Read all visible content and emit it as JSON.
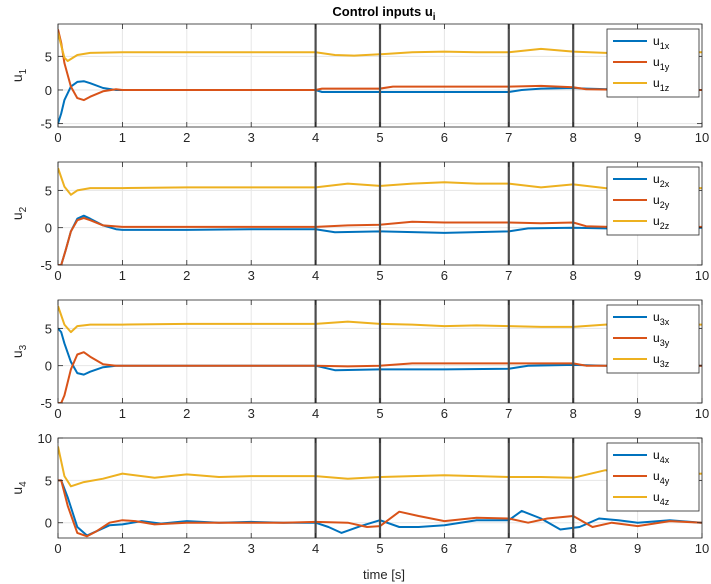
{
  "chart_data": [
    {
      "type": "line",
      "title": "Control inputs u",
      "title_sub": "i",
      "ylabel": "u",
      "ylabel_sub": "1",
      "xlabel": "",
      "xlim": [
        0,
        10
      ],
      "ylim": [
        -5.5,
        9.8
      ],
      "yticks": [
        -5,
        0,
        5
      ],
      "xticks": [
        0,
        1,
        2,
        3,
        4,
        5,
        6,
        7,
        8,
        9,
        10
      ],
      "grid": true,
      "legend_position": "top-right",
      "vlines": [
        4,
        5,
        7,
        8
      ],
      "series": [
        {
          "name": "u",
          "sub": "1x",
          "color": "#0072BD",
          "x": [
            0,
            0.05,
            0.1,
            0.2,
            0.3,
            0.4,
            0.5,
            0.7,
            0.9,
            1.0,
            2,
            3,
            4,
            4.1,
            4.5,
            5,
            5.2,
            6,
            6.5,
            7,
            7.2,
            7.5,
            8,
            8.2,
            9,
            10
          ],
          "y": [
            -5,
            -3.5,
            -1.5,
            0.5,
            1.2,
            1.3,
            1.0,
            0.3,
            0.0,
            0.0,
            0.0,
            0.0,
            0.0,
            -0.3,
            -0.3,
            -0.3,
            -0.3,
            -0.3,
            -0.3,
            -0.3,
            0.0,
            0.2,
            0.3,
            0.2,
            0.0,
            0.0
          ]
        },
        {
          "name": "u",
          "sub": "1y",
          "color": "#D95319",
          "x": [
            0,
            0.05,
            0.1,
            0.2,
            0.3,
            0.4,
            0.5,
            0.7,
            0.9,
            1.0,
            2,
            3,
            4,
            4.1,
            4.5,
            5,
            5.2,
            6,
            6.5,
            7,
            7.5,
            8,
            8.2,
            9,
            10
          ],
          "y": [
            9,
            7,
            4,
            0.5,
            -1.2,
            -1.5,
            -1.0,
            -0.2,
            0.1,
            0.0,
            0.0,
            0.0,
            0.0,
            0.2,
            0.2,
            0.2,
            0.5,
            0.5,
            0.5,
            0.5,
            0.6,
            0.4,
            0.1,
            0.0,
            0.0
          ]
        },
        {
          "name": "u",
          "sub": "1z",
          "color": "#EDB120",
          "x": [
            0,
            0.1,
            0.15,
            0.3,
            0.5,
            1,
            2,
            3,
            4,
            4.3,
            4.6,
            5,
            5.5,
            6,
            6.5,
            7,
            7.5,
            8,
            8.5,
            9,
            9.5,
            10
          ],
          "y": [
            8.5,
            4.8,
            4.3,
            5.2,
            5.5,
            5.6,
            5.6,
            5.6,
            5.6,
            5.2,
            5.1,
            5.3,
            5.6,
            5.7,
            5.6,
            5.6,
            6.1,
            5.7,
            5.5,
            5.5,
            5.6,
            5.6
          ]
        }
      ]
    },
    {
      "type": "line",
      "title": "",
      "ylabel": "u",
      "ylabel_sub": "2",
      "xlabel": "",
      "xlim": [
        0,
        10
      ],
      "ylim": [
        -5,
        8.8
      ],
      "yticks": [
        -5,
        0,
        5
      ],
      "xticks": [
        0,
        1,
        2,
        3,
        4,
        5,
        6,
        7,
        8,
        9,
        10
      ],
      "grid": true,
      "legend_position": "top-right",
      "vlines": [
        4,
        5,
        7,
        8
      ],
      "series": [
        {
          "name": "u",
          "sub": "2x",
          "color": "#0072BD",
          "x": [
            0,
            0.05,
            0.12,
            0.2,
            0.3,
            0.4,
            0.5,
            0.7,
            0.9,
            1.0,
            2,
            3,
            4,
            4.3,
            5,
            6,
            7,
            7.3,
            8,
            8.5,
            9,
            10
          ],
          "y": [
            -5,
            -5,
            -3,
            -0.5,
            1.2,
            1.6,
            1.2,
            0.3,
            -0.2,
            -0.3,
            -0.3,
            -0.2,
            -0.2,
            -0.6,
            -0.5,
            -0.7,
            -0.5,
            -0.1,
            0.0,
            -0.1,
            0.0,
            0.0
          ]
        },
        {
          "name": "u",
          "sub": "2y",
          "color": "#D95319",
          "x": [
            0,
            0.05,
            0.12,
            0.2,
            0.3,
            0.4,
            0.5,
            0.7,
            1.0,
            2,
            3,
            4,
            4.5,
            5,
            5.5,
            6,
            7,
            7.5,
            8,
            8.2,
            9,
            10
          ],
          "y": [
            -5,
            -5,
            -3,
            -0.5,
            1.0,
            1.3,
            1.0,
            0.3,
            0.1,
            0.1,
            0.1,
            0.1,
            0.3,
            0.4,
            0.8,
            0.7,
            0.7,
            0.6,
            0.7,
            0.2,
            0.0,
            0.1
          ]
        },
        {
          "name": "u",
          "sub": "2z",
          "color": "#EDB120",
          "x": [
            0,
            0.1,
            0.2,
            0.3,
            0.5,
            1,
            2,
            3,
            4,
            4.5,
            5,
            5.5,
            6,
            6.5,
            7,
            7.5,
            8,
            8.5,
            9,
            9.5,
            10
          ],
          "y": [
            8,
            5.5,
            4.4,
            5.0,
            5.3,
            5.3,
            5.4,
            5.4,
            5.4,
            5.9,
            5.6,
            5.9,
            6.1,
            5.9,
            5.9,
            5.4,
            5.8,
            5.3,
            5.2,
            5.3,
            5.3
          ]
        }
      ]
    },
    {
      "type": "line",
      "title": "",
      "ylabel": "u",
      "ylabel_sub": "3",
      "xlabel": "",
      "xlim": [
        0,
        10
      ],
      "ylim": [
        -5,
        8.8
      ],
      "yticks": [
        -5,
        0,
        5
      ],
      "xticks": [
        0,
        1,
        2,
        3,
        4,
        5,
        6,
        7,
        8,
        9,
        10
      ],
      "grid": true,
      "legend_position": "top-right",
      "vlines": [
        4,
        5,
        7,
        8
      ],
      "series": [
        {
          "name": "u",
          "sub": "3x",
          "color": "#0072BD",
          "x": [
            0,
            0.05,
            0.1,
            0.2,
            0.3,
            0.4,
            0.5,
            0.7,
            0.9,
            1.0,
            2,
            3,
            4,
            4.3,
            5,
            6,
            7,
            7.3,
            8,
            8.5,
            9,
            10
          ],
          "y": [
            5,
            4.5,
            3,
            0.5,
            -1.0,
            -1.2,
            -0.8,
            -0.2,
            0.0,
            0.0,
            0.0,
            0.0,
            0.0,
            -0.6,
            -0.5,
            -0.5,
            -0.4,
            0.0,
            0.1,
            0.0,
            0.0,
            0.0
          ]
        },
        {
          "name": "u",
          "sub": "3y",
          "color": "#D95319",
          "x": [
            0,
            0.05,
            0.1,
            0.2,
            0.3,
            0.4,
            0.5,
            0.7,
            0.9,
            1.0,
            2,
            3,
            4,
            4.5,
            5,
            5.5,
            6,
            7,
            7.5,
            8,
            8.2,
            9,
            10
          ],
          "y": [
            -5,
            -5,
            -4,
            -0.5,
            1.5,
            1.8,
            1.2,
            0.2,
            0.0,
            0.0,
            0.0,
            0.0,
            0.0,
            -0.1,
            0.0,
            0.3,
            0.3,
            0.3,
            0.3,
            0.3,
            0.0,
            0.0,
            0.0
          ]
        },
        {
          "name": "u",
          "sub": "3z",
          "color": "#EDB120",
          "x": [
            0,
            0.1,
            0.2,
            0.3,
            0.5,
            1,
            2,
            3,
            4,
            4.5,
            5,
            5.5,
            6,
            6.5,
            7,
            7.5,
            8,
            8.5,
            9,
            9.5,
            10
          ],
          "y": [
            8,
            5.5,
            4.5,
            5.3,
            5.5,
            5.5,
            5.6,
            5.6,
            5.6,
            5.9,
            5.6,
            5.5,
            5.3,
            5.4,
            5.3,
            5.2,
            5.2,
            5.5,
            5.6,
            5.5,
            5.5
          ]
        }
      ]
    },
    {
      "type": "line",
      "title": "",
      "ylabel": "u",
      "ylabel_sub": "4",
      "xlabel": "time [s]",
      "xlim": [
        0,
        10
      ],
      "ylim": [
        -1.8,
        10
      ],
      "yticks": [
        0,
        5,
        10
      ],
      "xticks": [
        0,
        1,
        2,
        3,
        4,
        5,
        6,
        7,
        8,
        9,
        10
      ],
      "grid": true,
      "legend_position": "top-right",
      "vlines": [
        4,
        5,
        7,
        8
      ],
      "series": [
        {
          "name": "u",
          "sub": "4x",
          "color": "#0072BD",
          "x": [
            0,
            0.05,
            0.15,
            0.3,
            0.45,
            0.6,
            0.8,
            1.0,
            1.3,
            1.6,
            2,
            2.5,
            3,
            3.5,
            4,
            4.2,
            4.4,
            4.7,
            5.0,
            5.3,
            5.6,
            6,
            6.5,
            7,
            7.2,
            7.5,
            7.8,
            8.1,
            8.4,
            8.7,
            9,
            9.5,
            10
          ],
          "y": [
            5,
            5,
            3,
            -0.5,
            -1.5,
            -1.0,
            -0.3,
            -0.2,
            0.2,
            -0.1,
            0.2,
            0.0,
            0.1,
            0.0,
            0.0,
            -0.5,
            -1.2,
            -0.4,
            0.3,
            -0.5,
            -0.5,
            -0.3,
            0.3,
            0.3,
            1.4,
            0.5,
            -0.8,
            -0.5,
            0.5,
            0.3,
            0.0,
            0.3,
            0.0
          ]
        },
        {
          "name": "u",
          "sub": "4y",
          "color": "#D95319",
          "x": [
            0,
            0.05,
            0.15,
            0.3,
            0.45,
            0.6,
            0.8,
            1.0,
            1.2,
            1.5,
            2,
            2.5,
            3,
            3.5,
            4,
            4.5,
            4.8,
            5.0,
            5.3,
            5.6,
            6,
            6.5,
            7,
            7.3,
            7.6,
            8,
            8.3,
            8.6,
            9,
            9.5,
            10
          ],
          "y": [
            5,
            5,
            2,
            -1.2,
            -1.6,
            -1.0,
            0.0,
            0.3,
            0.2,
            -0.2,
            0.0,
            0.0,
            0.0,
            0.0,
            0.1,
            0.0,
            -0.5,
            -0.4,
            1.3,
            0.8,
            0.2,
            0.6,
            0.5,
            0.0,
            0.5,
            0.8,
            -0.5,
            0.0,
            -0.4,
            0.2,
            0.0
          ]
        },
        {
          "name": "u",
          "sub": "4z",
          "color": "#EDB120",
          "x": [
            0,
            0.1,
            0.2,
            0.4,
            0.7,
            1,
            1.5,
            2,
            2.5,
            3,
            3.5,
            4,
            4.5,
            5,
            5.5,
            6,
            6.5,
            7,
            7.5,
            8,
            8.5,
            9,
            9.5,
            10
          ],
          "y": [
            9,
            5.5,
            4.3,
            4.8,
            5.2,
            5.8,
            5.3,
            5.7,
            5.4,
            5.5,
            5.5,
            5.5,
            5.2,
            5.4,
            5.5,
            5.6,
            5.5,
            5.4,
            5.4,
            5.3,
            6.2,
            5.4,
            5.6,
            5.8
          ]
        }
      ]
    }
  ]
}
